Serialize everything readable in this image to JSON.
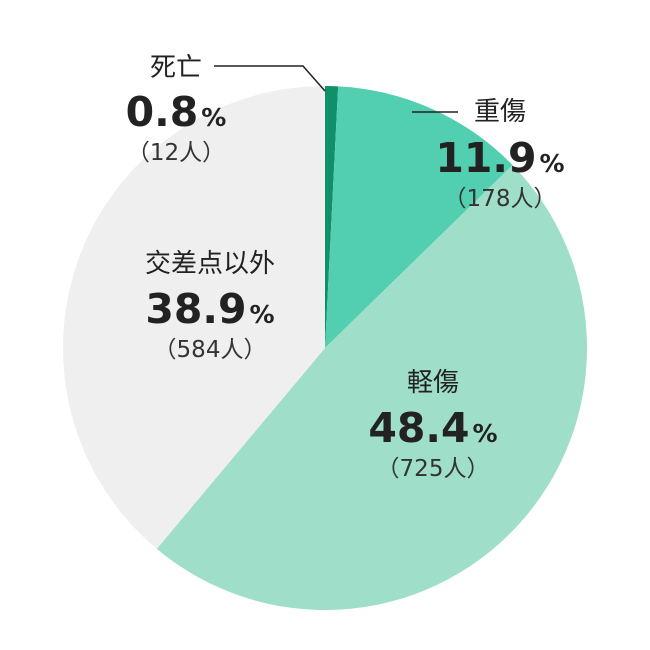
{
  "chart_data": {
    "type": "pie",
    "start_angle": "12 o'clock",
    "direction": "clockwise",
    "legend": "none",
    "slices": [
      {
        "label": "死亡",
        "value": 0.8,
        "value_text": "0.8",
        "unit": "%",
        "count_text": "（12人）",
        "color": "#0f8f6a"
      },
      {
        "label": "重傷",
        "value": 11.9,
        "value_text": "11.9",
        "unit": "%",
        "count_text": "（178人）",
        "color": "#52cfb0"
      },
      {
        "label": "軽傷",
        "value": 48.4,
        "value_text": "48.4",
        "unit": "%",
        "count_text": "（725人）",
        "color": "#9fdfca"
      },
      {
        "label": "交差点以外",
        "value": 38.9,
        "value_text": "38.9",
        "unit": "%",
        "count_text": "（584人）",
        "color": "#efefef"
      }
    ]
  }
}
